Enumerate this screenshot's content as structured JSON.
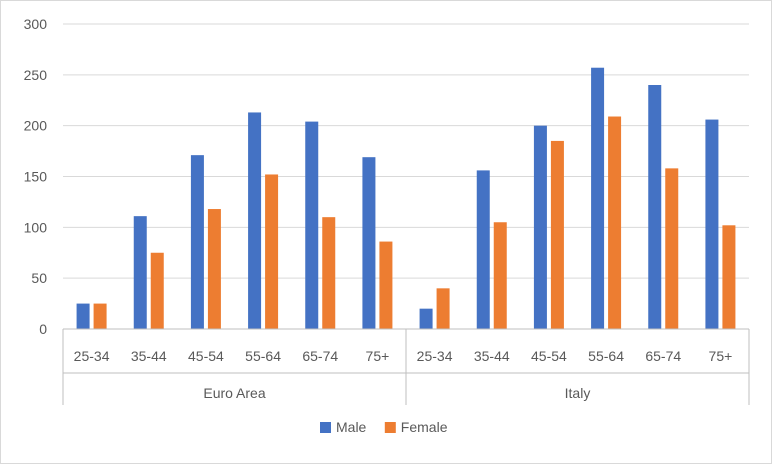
{
  "chart_data": {
    "type": "bar",
    "title": "",
    "xlabel": "",
    "ylabel": "",
    "ylim": [
      0,
      300
    ],
    "yticks": [
      0,
      50,
      100,
      150,
      200,
      250,
      300
    ],
    "grid": true,
    "legend_position": "bottom",
    "groups": [
      {
        "label": "Euro Area",
        "categories": [
          "25-34",
          "35-44",
          "45-54",
          "55-64",
          "65-74",
          "75+"
        ]
      },
      {
        "label": "Italy",
        "categories": [
          "25-34",
          "35-44",
          "45-54",
          "55-64",
          "65-74",
          "75+"
        ]
      }
    ],
    "series": [
      {
        "name": "Male",
        "color": "#4472c4",
        "values": [
          25,
          111,
          171,
          213,
          204,
          169,
          20,
          156,
          200,
          257,
          240,
          206
        ]
      },
      {
        "name": "Female",
        "color": "#ed7d31",
        "values": [
          25,
          75,
          118,
          152,
          110,
          86,
          40,
          105,
          185,
          209,
          158,
          102
        ]
      }
    ],
    "colors": {
      "gridline": "#d9d9d9",
      "axis": "#bfbfbf",
      "text": "#595959"
    }
  }
}
